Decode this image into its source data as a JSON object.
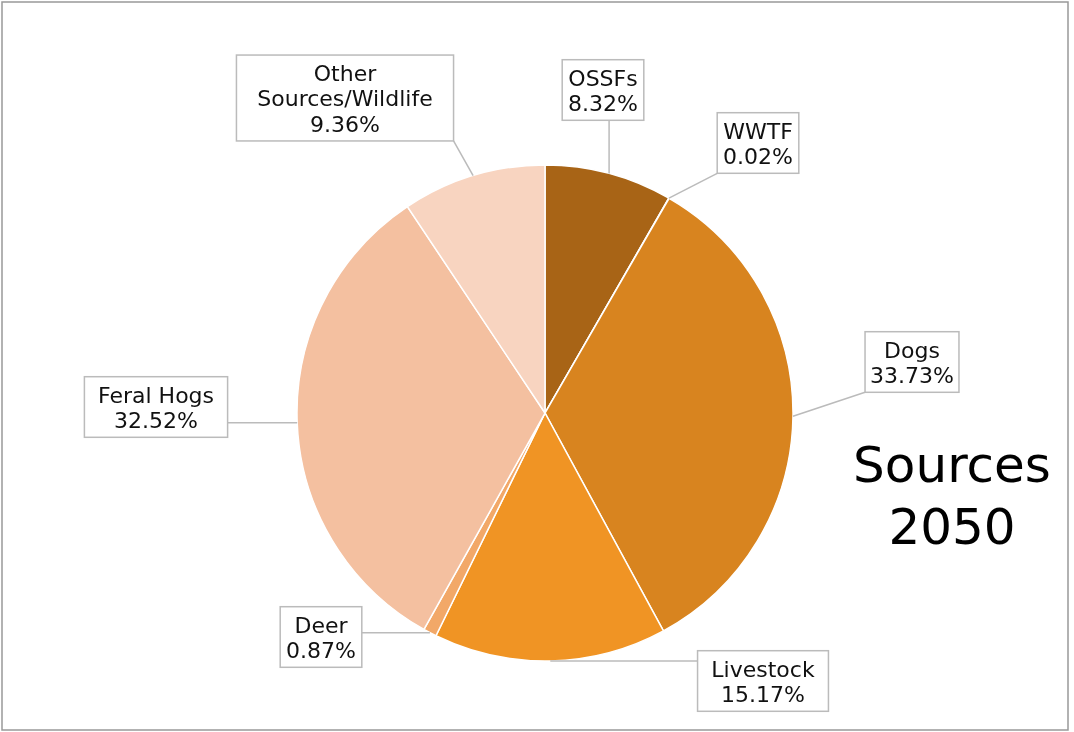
{
  "chart_data": {
    "type": "pie",
    "title": "Sources 2050",
    "categories": [
      "OSSFs",
      "WWTF",
      "Dogs",
      "Livestock",
      "Deer",
      "Feral Hogs",
      "Other Sources/Wildlife"
    ],
    "values": [
      8.32,
      0.02,
      33.73,
      15.17,
      0.87,
      32.52,
      9.36
    ],
    "value_labels": [
      "8.32%",
      "0.02%",
      "33.73%",
      "15.17%",
      "0.87%",
      "32.52%",
      "9.36%"
    ],
    "colors": [
      "#a86416",
      "#d8841f",
      "#d8841f",
      "#f09424",
      "#f2a868",
      "#f4c0a0",
      "#f8d4c0"
    ]
  }
}
